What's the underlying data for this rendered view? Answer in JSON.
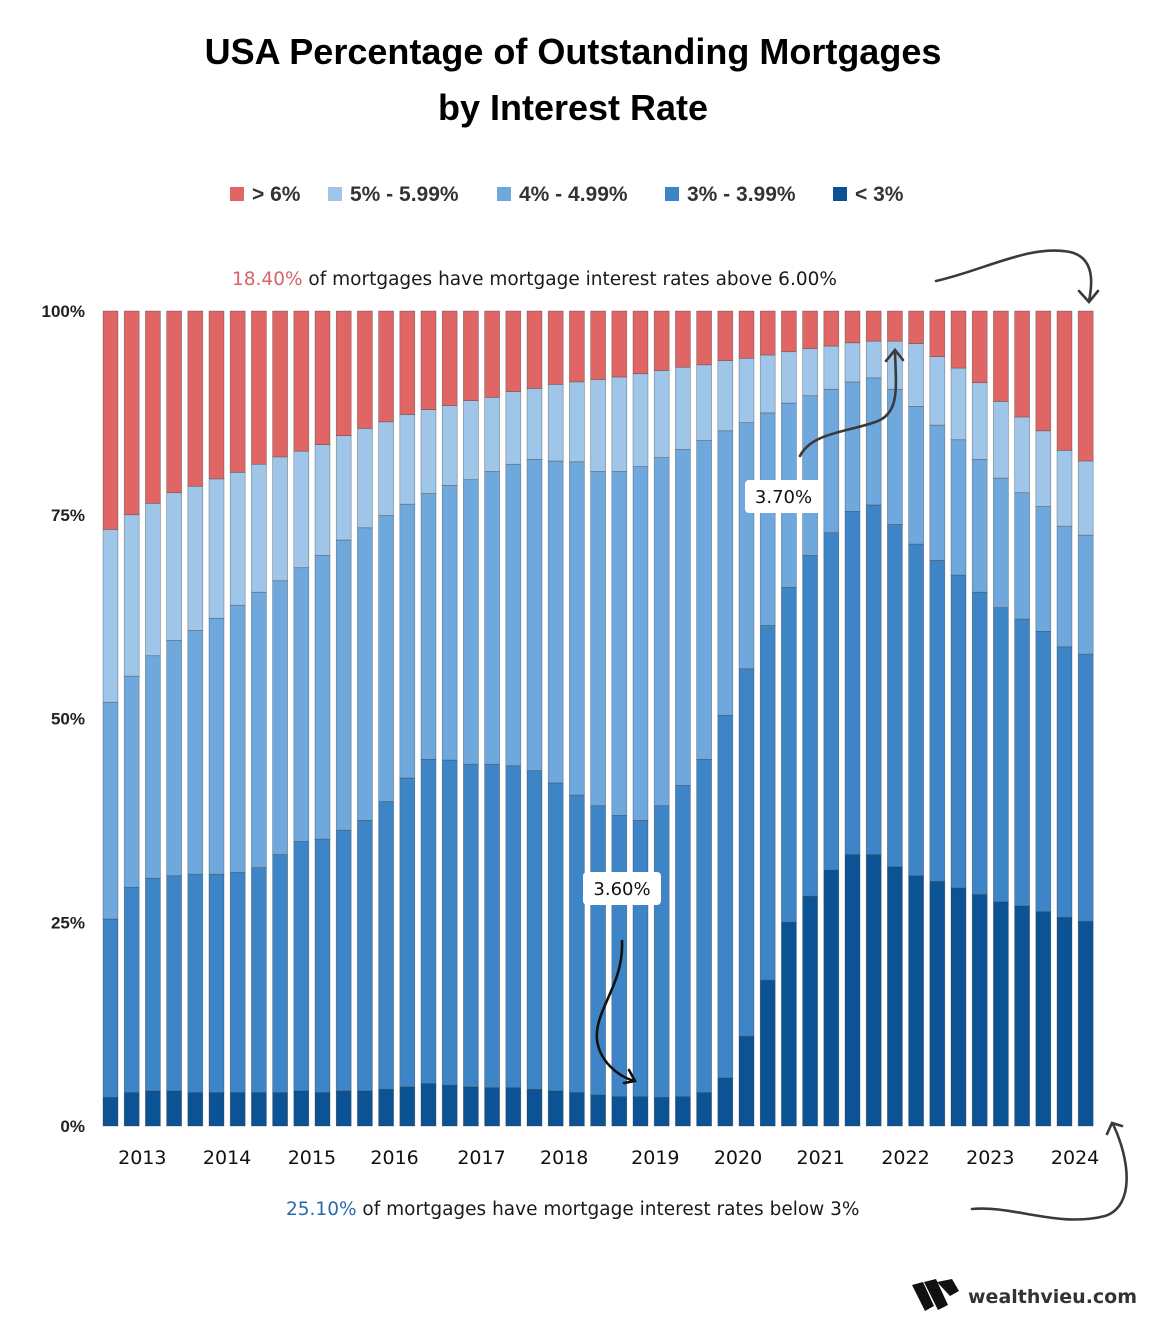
{
  "chart_data": {
    "type": "bar",
    "stacked": true,
    "title": "USA Percentage of Outstanding Mortgages by Interest Rate",
    "title_lines": [
      "USA Percentage of Outstanding Mortgages",
      "by Interest Rate"
    ],
    "ylim": [
      0,
      100
    ],
    "y_ticks": [
      "0%",
      "25%",
      "50%",
      "75%",
      "100%"
    ],
    "x_tick_labels": [
      "2013",
      "2014",
      "2015",
      "2016",
      "2017",
      "2018",
      "2019",
      "2020",
      "2021",
      "2022",
      "2023",
      "2024"
    ],
    "legend_position": "top",
    "grid": false,
    "series": [
      {
        "name": "> 6%",
        "color": "#e06666",
        "values": [
          26.8,
          25.0,
          23.6,
          22.3,
          21.5,
          20.6,
          19.8,
          18.8,
          17.9,
          17.2,
          16.4,
          15.3,
          14.4,
          13.6,
          12.7,
          12.1,
          11.6,
          11.0,
          10.6,
          9.9,
          9.5,
          9.0,
          8.7,
          8.4,
          8.1,
          7.7,
          7.3,
          6.9,
          6.6,
          6.1,
          5.8,
          5.4,
          5.0,
          4.6,
          4.3,
          3.9,
          3.7,
          3.7,
          4.0,
          5.6,
          7.0,
          8.8,
          11.1,
          13.0,
          14.7,
          17.1,
          18.4
        ]
      },
      {
        "name": "5% - 5.99%",
        "color": "#9fc5e8",
        "values": [
          21.2,
          19.8,
          18.7,
          18.1,
          17.7,
          17.1,
          16.3,
          15.7,
          15.2,
          14.3,
          13.6,
          12.8,
          12.2,
          11.5,
          11.0,
          10.3,
          9.8,
          9.7,
          9.1,
          8.9,
          8.7,
          9.4,
          9.8,
          11.3,
          11.6,
          11.4,
          10.7,
          10.1,
          9.3,
          8.6,
          7.9,
          7.1,
          6.3,
          5.8,
          5.3,
          4.8,
          4.5,
          5.9,
          7.7,
          8.4,
          8.8,
          9.4,
          9.4,
          9.3,
          9.3,
          9.3,
          9.1
        ]
      },
      {
        "name": "4% - 4.99%",
        "color": "#6fa8dc",
        "values": [
          26.6,
          25.9,
          27.3,
          28.9,
          29.9,
          31.4,
          32.8,
          33.8,
          33.6,
          33.6,
          34.8,
          35.6,
          35.9,
          35.1,
          33.6,
          32.6,
          33.7,
          34.9,
          35.9,
          37.0,
          38.2,
          39.5,
          40.9,
          41.0,
          42.2,
          43.4,
          42.7,
          41.2,
          39.1,
          34.9,
          30.2,
          26.1,
          22.6,
          19.6,
          17.6,
          15.9,
          15.6,
          16.6,
          16.9,
          16.6,
          16.6,
          16.3,
          15.9,
          15.5,
          15.3,
          14.8,
          14.6
        ]
      },
      {
        "name": "3% - 3.99%",
        "color": "#3d85c6",
        "values": [
          21.9,
          25.2,
          26.1,
          26.4,
          26.8,
          26.8,
          27.0,
          27.6,
          29.2,
          30.6,
          31.1,
          32.0,
          33.2,
          35.3,
          37.9,
          39.8,
          39.9,
          39.6,
          39.7,
          39.5,
          39.1,
          37.8,
          36.5,
          35.5,
          34.5,
          33.9,
          35.8,
          38.2,
          40.9,
          44.5,
          45.1,
          43.5,
          41.1,
          41.8,
          41.4,
          42.1,
          42.9,
          42.0,
          40.7,
          39.4,
          38.4,
          37.1,
          36.1,
          35.2,
          34.4,
          33.2,
          32.8
        ]
      },
      {
        "name": "< 3%",
        "color": "#0b5394",
        "values": [
          3.5,
          4.1,
          4.3,
          4.3,
          4.1,
          4.1,
          4.1,
          4.1,
          4.1,
          4.3,
          4.1,
          4.3,
          4.3,
          4.5,
          4.8,
          5.2,
          5.0,
          4.8,
          4.7,
          4.7,
          4.5,
          4.3,
          4.1,
          3.8,
          3.6,
          3.6,
          3.5,
          3.6,
          4.1,
          5.9,
          11.0,
          17.9,
          25.0,
          28.2,
          31.4,
          33.3,
          33.3,
          31.8,
          30.7,
          30.0,
          29.2,
          28.4,
          27.5,
          27.0,
          26.3,
          25.6,
          25.1
        ]
      }
    ],
    "annotations": {
      "top": {
        "highlight": "18.40%",
        "highlight_color": "#d9626b",
        "text": " of mortgages have mortgage interest rates above 6.00%"
      },
      "bottom": {
        "highlight": "25.10%",
        "highlight_color": "#2a6aa6",
        "text": " of mortgages have mortgage interest rates below 3%"
      },
      "callout_low": "3.60%",
      "callout_high": "3.70%"
    }
  },
  "branding": {
    "site": "wealthvieu.com"
  }
}
